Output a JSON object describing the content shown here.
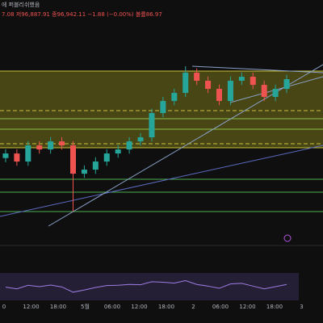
{
  "chart_data": {
    "type": "candlestick",
    "header": "에 퍼블리쉬했음",
    "legend_text": "7.08  저96,887.91  종96,942.11  −1.88 (−0.00%)  볼륨86.97",
    "ylim": [
      93200,
      97400
    ],
    "open": [
      95000,
      95108,
      94917,
      95299,
      95203,
      95394,
      95299,
      94630,
      94726,
      94917,
      95108,
      95203,
      95394,
      95490,
      96063,
      96349,
      96540,
      97018,
      96827,
      96636,
      96349,
      96827,
      96922,
      96731,
      96445,
      96636
    ],
    "close": [
      95108,
      94917,
      95299,
      95203,
      95394,
      95299,
      94630,
      94726,
      94917,
      95108,
      95203,
      95394,
      95490,
      96063,
      96349,
      96540,
      97018,
      96827,
      96636,
      96349,
      96827,
      96922,
      96731,
      96445,
      96636,
      96865
    ],
    "high": [
      95208,
      95208,
      95399,
      95399,
      95494,
      95494,
      95399,
      94826,
      95017,
      95208,
      95303,
      95494,
      95590,
      96163,
      96449,
      96640,
      97171,
      97118,
      96927,
      96736,
      96927,
      97022,
      97022,
      96831,
      96736,
      96965
    ],
    "low": [
      94900,
      94817,
      94817,
      95103,
      95103,
      95199,
      93733,
      94530,
      94626,
      94817,
      95008,
      95103,
      95294,
      95390,
      95963,
      96249,
      96440,
      96727,
      96536,
      96249,
      96249,
      96727,
      96631,
      96345,
      96345,
      96536
    ],
    "rsi": [
      48,
      42,
      55,
      50,
      56,
      49,
      30,
      38,
      47,
      54,
      55,
      58,
      57,
      68,
      66,
      63,
      72,
      58,
      52,
      44,
      60,
      62,
      52,
      42,
      50,
      58
    ],
    "rsi_lim": [
      0,
      100
    ],
    "xticks": [
      "0",
      "12:00",
      "18:00",
      "5월",
      "06:00",
      "12:00",
      "18:00",
      "2",
      "06:00",
      "12:00",
      "18:00",
      "3"
    ],
    "up_color": "#26a69a",
    "down_color": "#ef5350"
  }
}
